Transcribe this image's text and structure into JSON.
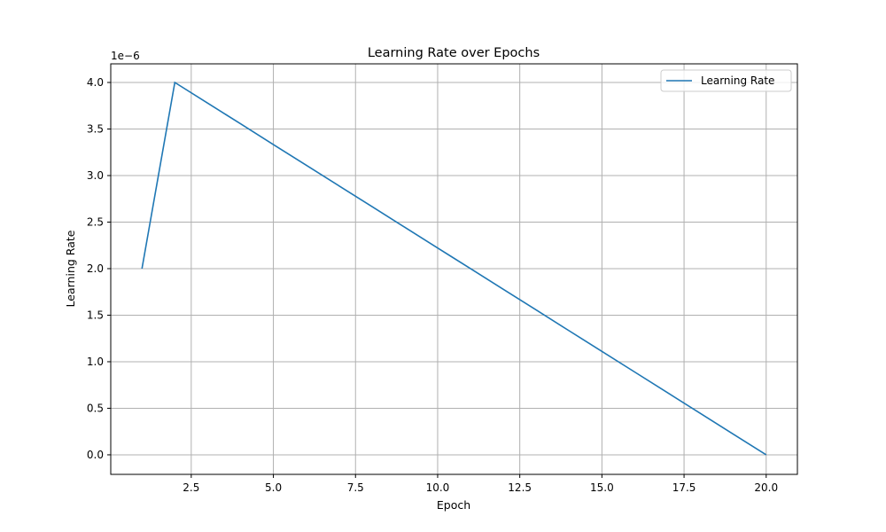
{
  "chart_data": {
    "type": "line",
    "title": "Learning Rate over Epochs",
    "xlabel": "Epoch",
    "ylabel": "Learning Rate",
    "y_offset_label": "1e−6",
    "xlim": [
      0.05,
      20.95
    ],
    "ylim": [
      -0.21,
      4.2
    ],
    "grid": true,
    "legend_position": "upper right",
    "x_ticks": [
      "2.5",
      "5.0",
      "7.5",
      "10.0",
      "12.5",
      "15.0",
      "17.5",
      "20.0"
    ],
    "y_ticks": [
      "0.0",
      "0.5",
      "1.0",
      "1.5",
      "2.0",
      "2.5",
      "3.0",
      "3.5",
      "4.0"
    ],
    "series": [
      {
        "name": "Learning Rate",
        "color": "#1f77b4",
        "x": [
          1,
          2,
          3,
          4,
          5,
          6,
          7,
          8,
          9,
          10,
          11,
          12,
          13,
          14,
          15,
          16,
          17,
          18,
          19,
          20
        ],
        "values": [
          2e-06,
          4e-06,
          3.778e-06,
          3.556e-06,
          3.333e-06,
          3.111e-06,
          2.889e-06,
          2.667e-06,
          2.444e-06,
          2.222e-06,
          2e-06,
          1.778e-06,
          1.556e-06,
          1.333e-06,
          1.111e-06,
          8.89e-07,
          6.67e-07,
          4.44e-07,
          2.22e-07,
          0.0
        ]
      }
    ]
  }
}
